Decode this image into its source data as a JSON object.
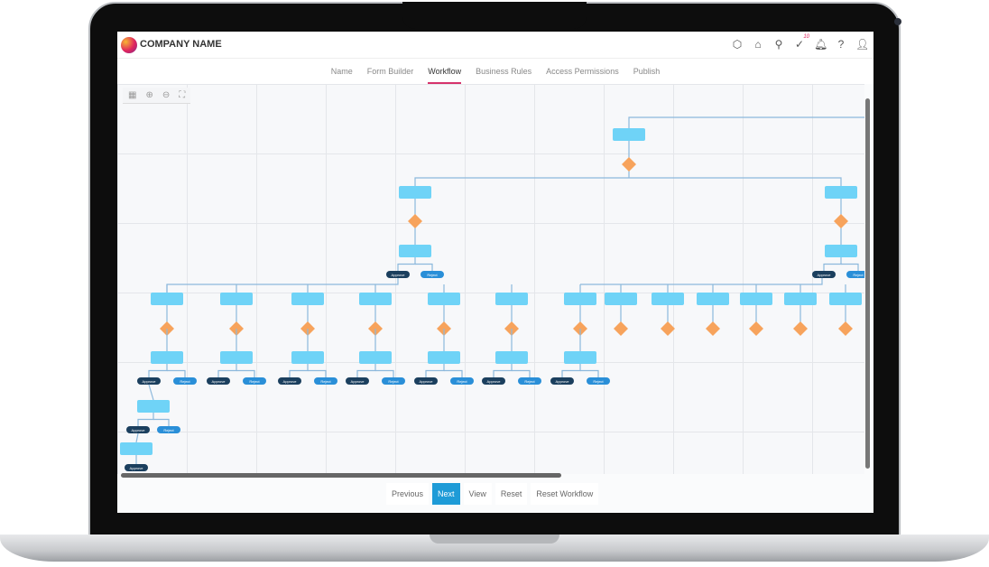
{
  "header": {
    "brand": "COMPANY NAME",
    "icons": [
      "box-icon",
      "store-icon",
      "search-icon",
      "task-check-icon",
      "bell-icon",
      "help-icon",
      "user-icon"
    ],
    "task_badge": "10"
  },
  "tabs": [
    {
      "label": "Name"
    },
    {
      "label": "Form Builder"
    },
    {
      "label": "Workflow",
      "active": true
    },
    {
      "label": "Business Rules"
    },
    {
      "label": "Access Permissions"
    },
    {
      "label": "Publish"
    }
  ],
  "toolbar": {
    "icons": [
      "chart-icon",
      "zoom-in-icon",
      "zoom-out-icon",
      "fullscreen-icon"
    ]
  },
  "diagram": {
    "approve_label": "Approve",
    "reject_label": "Reject",
    "colors": {
      "node": "#6fd3f7",
      "decision": "#f7a35c",
      "approve": "#1b3f5e",
      "reject": "#2a8fd8",
      "connector": "#8cb8dc"
    }
  },
  "footer": {
    "previous": "Previous",
    "next": "Next",
    "view": "View",
    "reset": "Reset",
    "reset_workflow": "Reset Workflow"
  },
  "accent": "#d6336c"
}
